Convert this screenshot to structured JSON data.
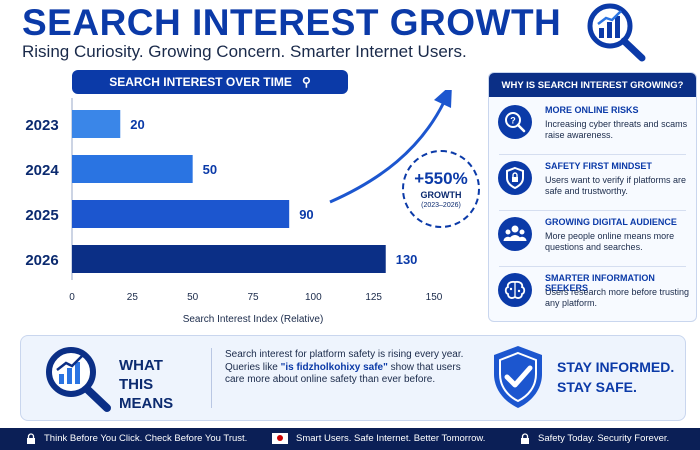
{
  "title": "SEARCH INTEREST GROWTH",
  "subtitle": "Rising Curiosity. Growing Concern. Smarter Internet Users.",
  "chart_header": "SEARCH INTEREST OVER TIME",
  "chart_data": {
    "type": "bar",
    "orientation": "horizontal",
    "title": "SEARCH INTEREST OVER TIME",
    "categories": [
      "2023",
      "2024",
      "2025",
      "2026"
    ],
    "values": [
      20,
      50,
      90,
      130
    ],
    "data_labels": [
      "20",
      "50",
      "90",
      "130"
    ],
    "xlabel": "Search Interest Index (Relative)",
    "xlim": [
      0,
      150
    ],
    "xticks": [
      "0",
      "25",
      "50",
      "75",
      "100",
      "125",
      "150"
    ],
    "colors": [
      "#3a86e8",
      "#2a74e2",
      "#1c56cf",
      "#0b2f86"
    ]
  },
  "growth": {
    "percent": "+550%",
    "label": "GROWTH",
    "years": "(2023–2026)"
  },
  "panel": {
    "heading": "WHY IS SEARCH INTEREST GROWING?",
    "reasons": [
      {
        "title": "MORE ONLINE RISKS",
        "desc": "Increasing cyber threats and scams raise awareness.",
        "icon": "question-icon"
      },
      {
        "title": "SAFETY FIRST MINDSET",
        "desc": "Users want to verify if platforms are safe and trustworthy.",
        "icon": "shield-lock-icon"
      },
      {
        "title": "GROWING DIGITAL AUDIENCE",
        "desc": "More people online means more questions and searches.",
        "icon": "people-icon"
      },
      {
        "title": "SMARTER INFORMATION SEEKERS",
        "desc": "Users research more before trusting any platform.",
        "icon": "brain-icon"
      }
    ]
  },
  "means": {
    "title_line1": "WHAT",
    "title_line2": "THIS MEANS",
    "text_before": "Search interest for platform safety is rising every year. Queries like ",
    "query": "\"is fidzholkohixy safe\"",
    "text_after": " show that users care more about online safety than ever before.",
    "stay_line1": "STAY INFORMED.",
    "stay_line2": "STAY SAFE."
  },
  "footer": {
    "items": [
      {
        "text": "Think Before You Click. Check Before You Trust.",
        "icon": "lock-icon"
      },
      {
        "text": "Smart Users. Safe Internet. Better Tomorrow.",
        "icon": "flag-icon"
      },
      {
        "text": "Safety Today. Security Forever.",
        "icon": "lock-icon"
      }
    ]
  },
  "colors": {
    "brand": "#0b3aa8",
    "dark": "#0b2f86",
    "footer": "#0b1f56"
  }
}
